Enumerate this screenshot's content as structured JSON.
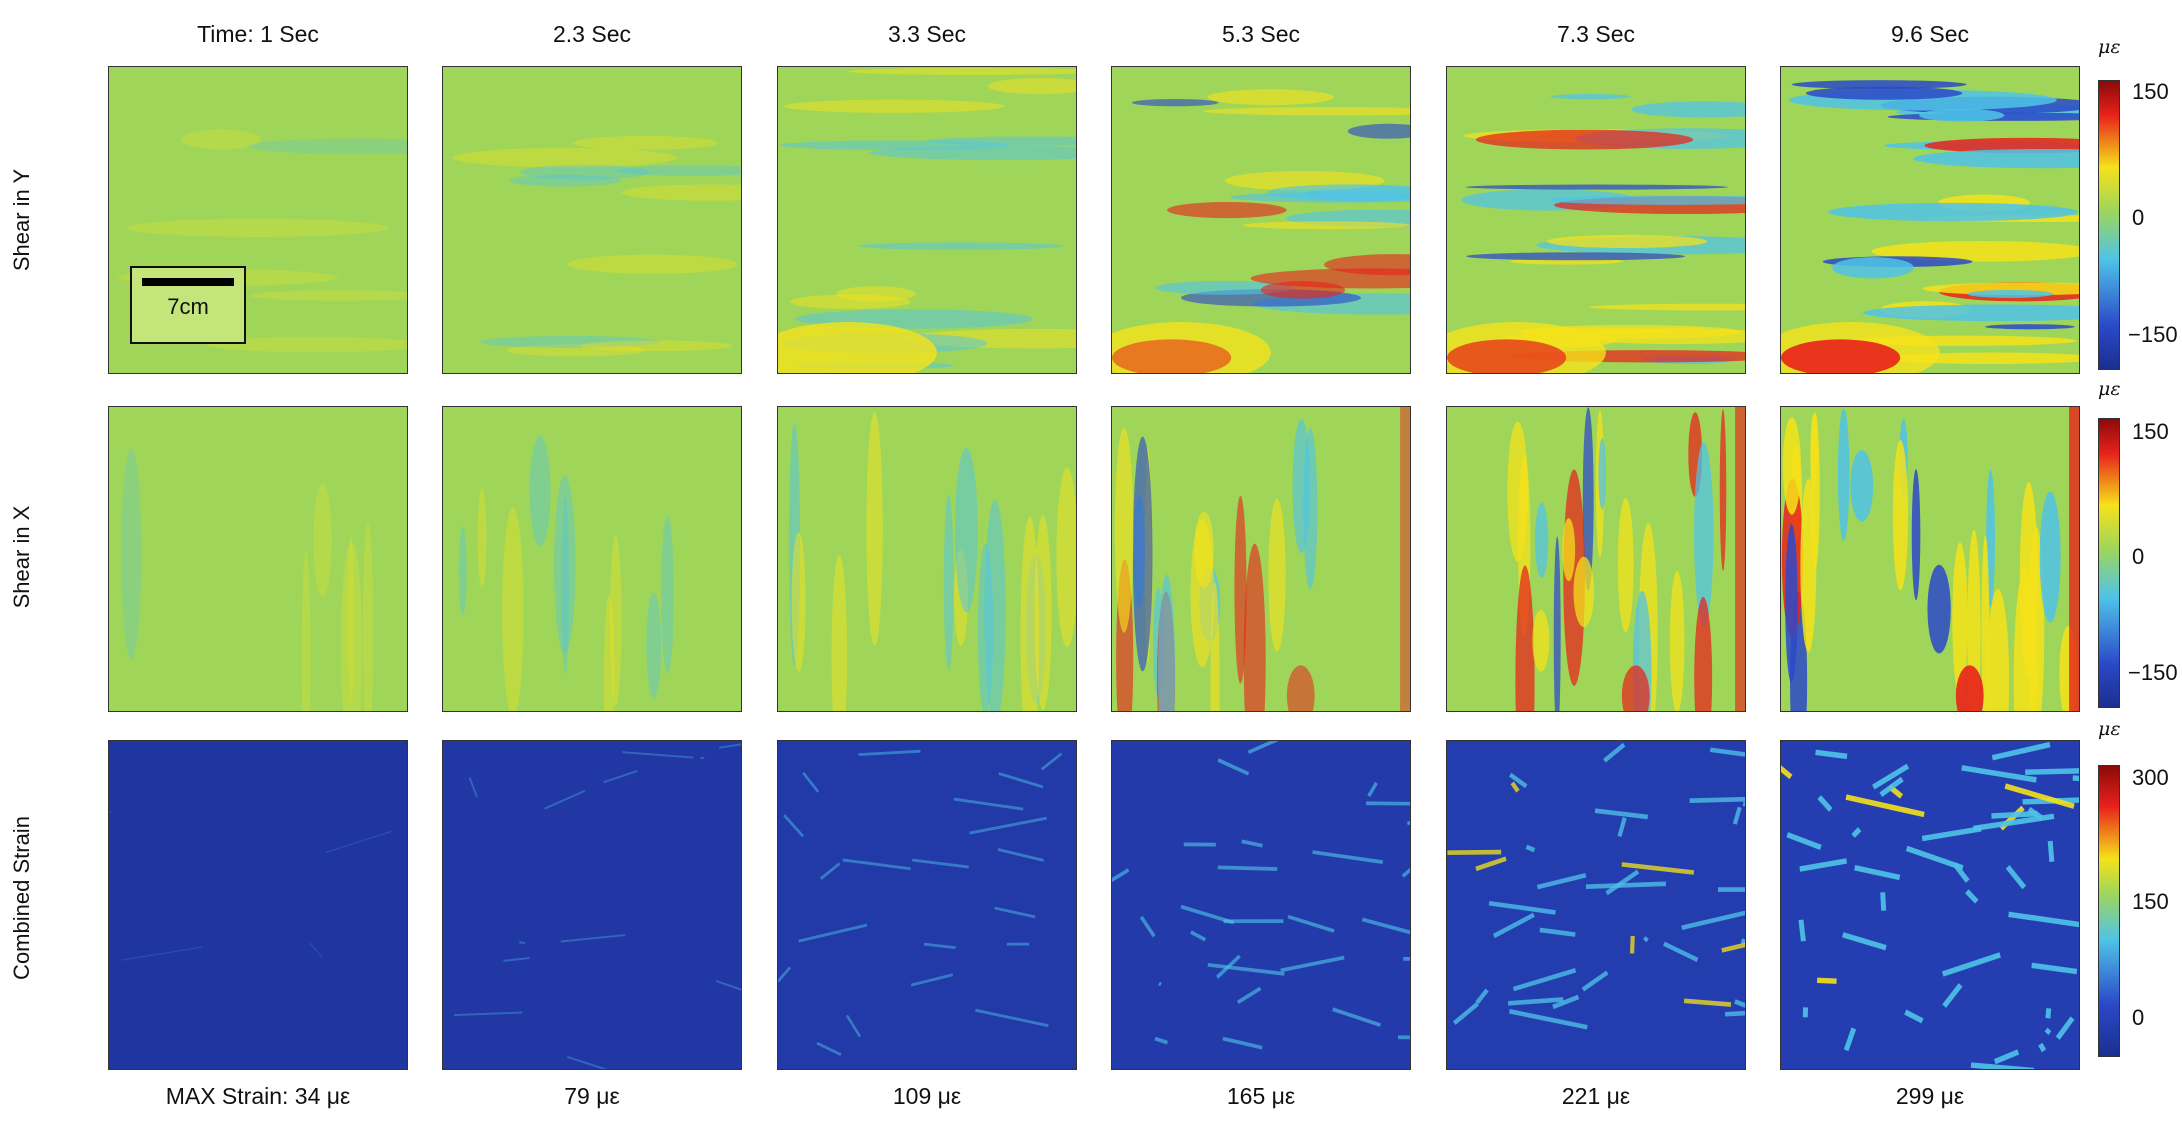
{
  "column_titles": [
    "Time: 1 Sec",
    "2.3 Sec",
    "3.3 Sec",
    "5.3 Sec",
    "7.3 Sec",
    "9.6 Sec"
  ],
  "row_titles": [
    "Shear in Y",
    "Shear in X",
    "Combined Strain"
  ],
  "max_strain_labels": [
    "MAX Strain: 34 με",
    "79 με",
    "109 με",
    "165 με",
    "221 με",
    "299 με"
  ],
  "scale_bar": {
    "label": "7cm"
  },
  "colorbars": [
    {
      "unit": "με",
      "ticks": [
        "150",
        "0",
        "−150"
      ]
    },
    {
      "unit": "με",
      "ticks": [
        "150",
        "0",
        "−150"
      ]
    },
    {
      "unit": "με",
      "ticks": [
        "300",
        "150",
        "0"
      ]
    }
  ],
  "colors": {
    "jet_dark_red": "#8b0a0a",
    "jet_red": "#e8221b",
    "jet_yellow": "#f5e21a",
    "jet_green_yellow": "#9fd65a",
    "jet_cyan": "#4fc3e8",
    "jet_blue": "#2b49c9",
    "jet_dark_blue": "#1b2f8f"
  }
}
